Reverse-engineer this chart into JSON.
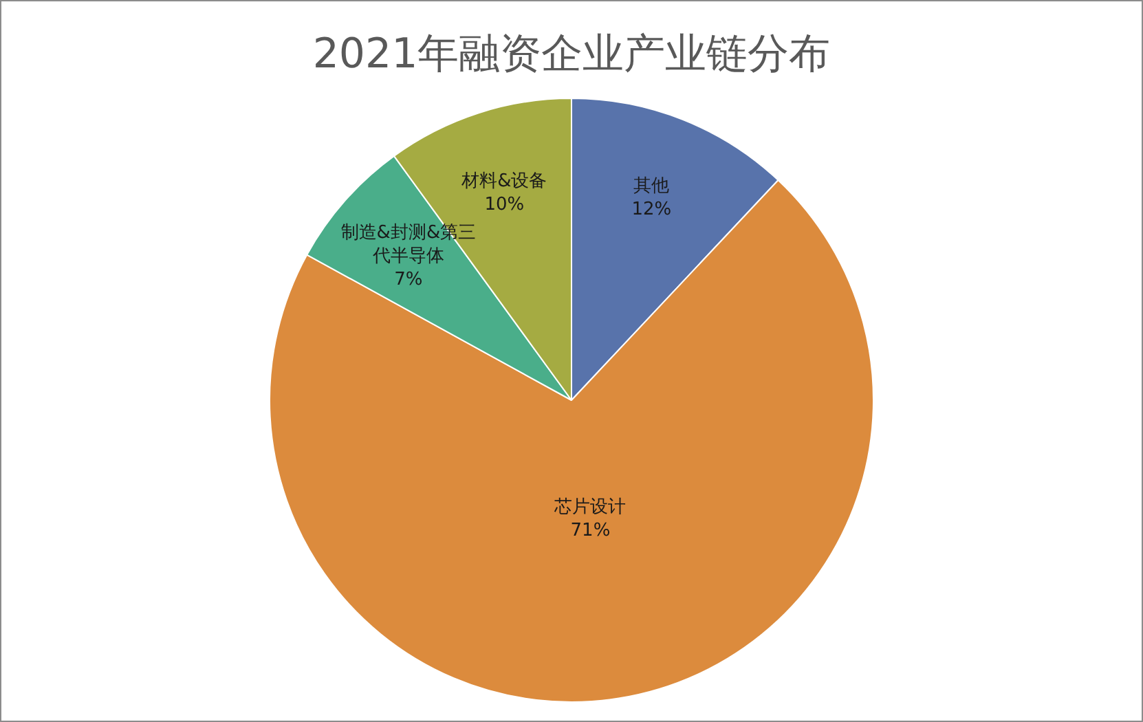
{
  "chart_data": {
    "type": "pie",
    "title": "2021年融资企业产业链分布",
    "categories": [
      "其他",
      "芯片设计",
      "制造&封测&第三代半导体",
      "材料&设备"
    ],
    "values": [
      12,
      71,
      7,
      10
    ],
    "value_labels": [
      "12%",
      "71%",
      "7%",
      "10%"
    ],
    "colors": [
      "#5873ab",
      "#dc8b3d",
      "#4aae8a",
      "#a5ab42"
    ],
    "legend": false
  }
}
